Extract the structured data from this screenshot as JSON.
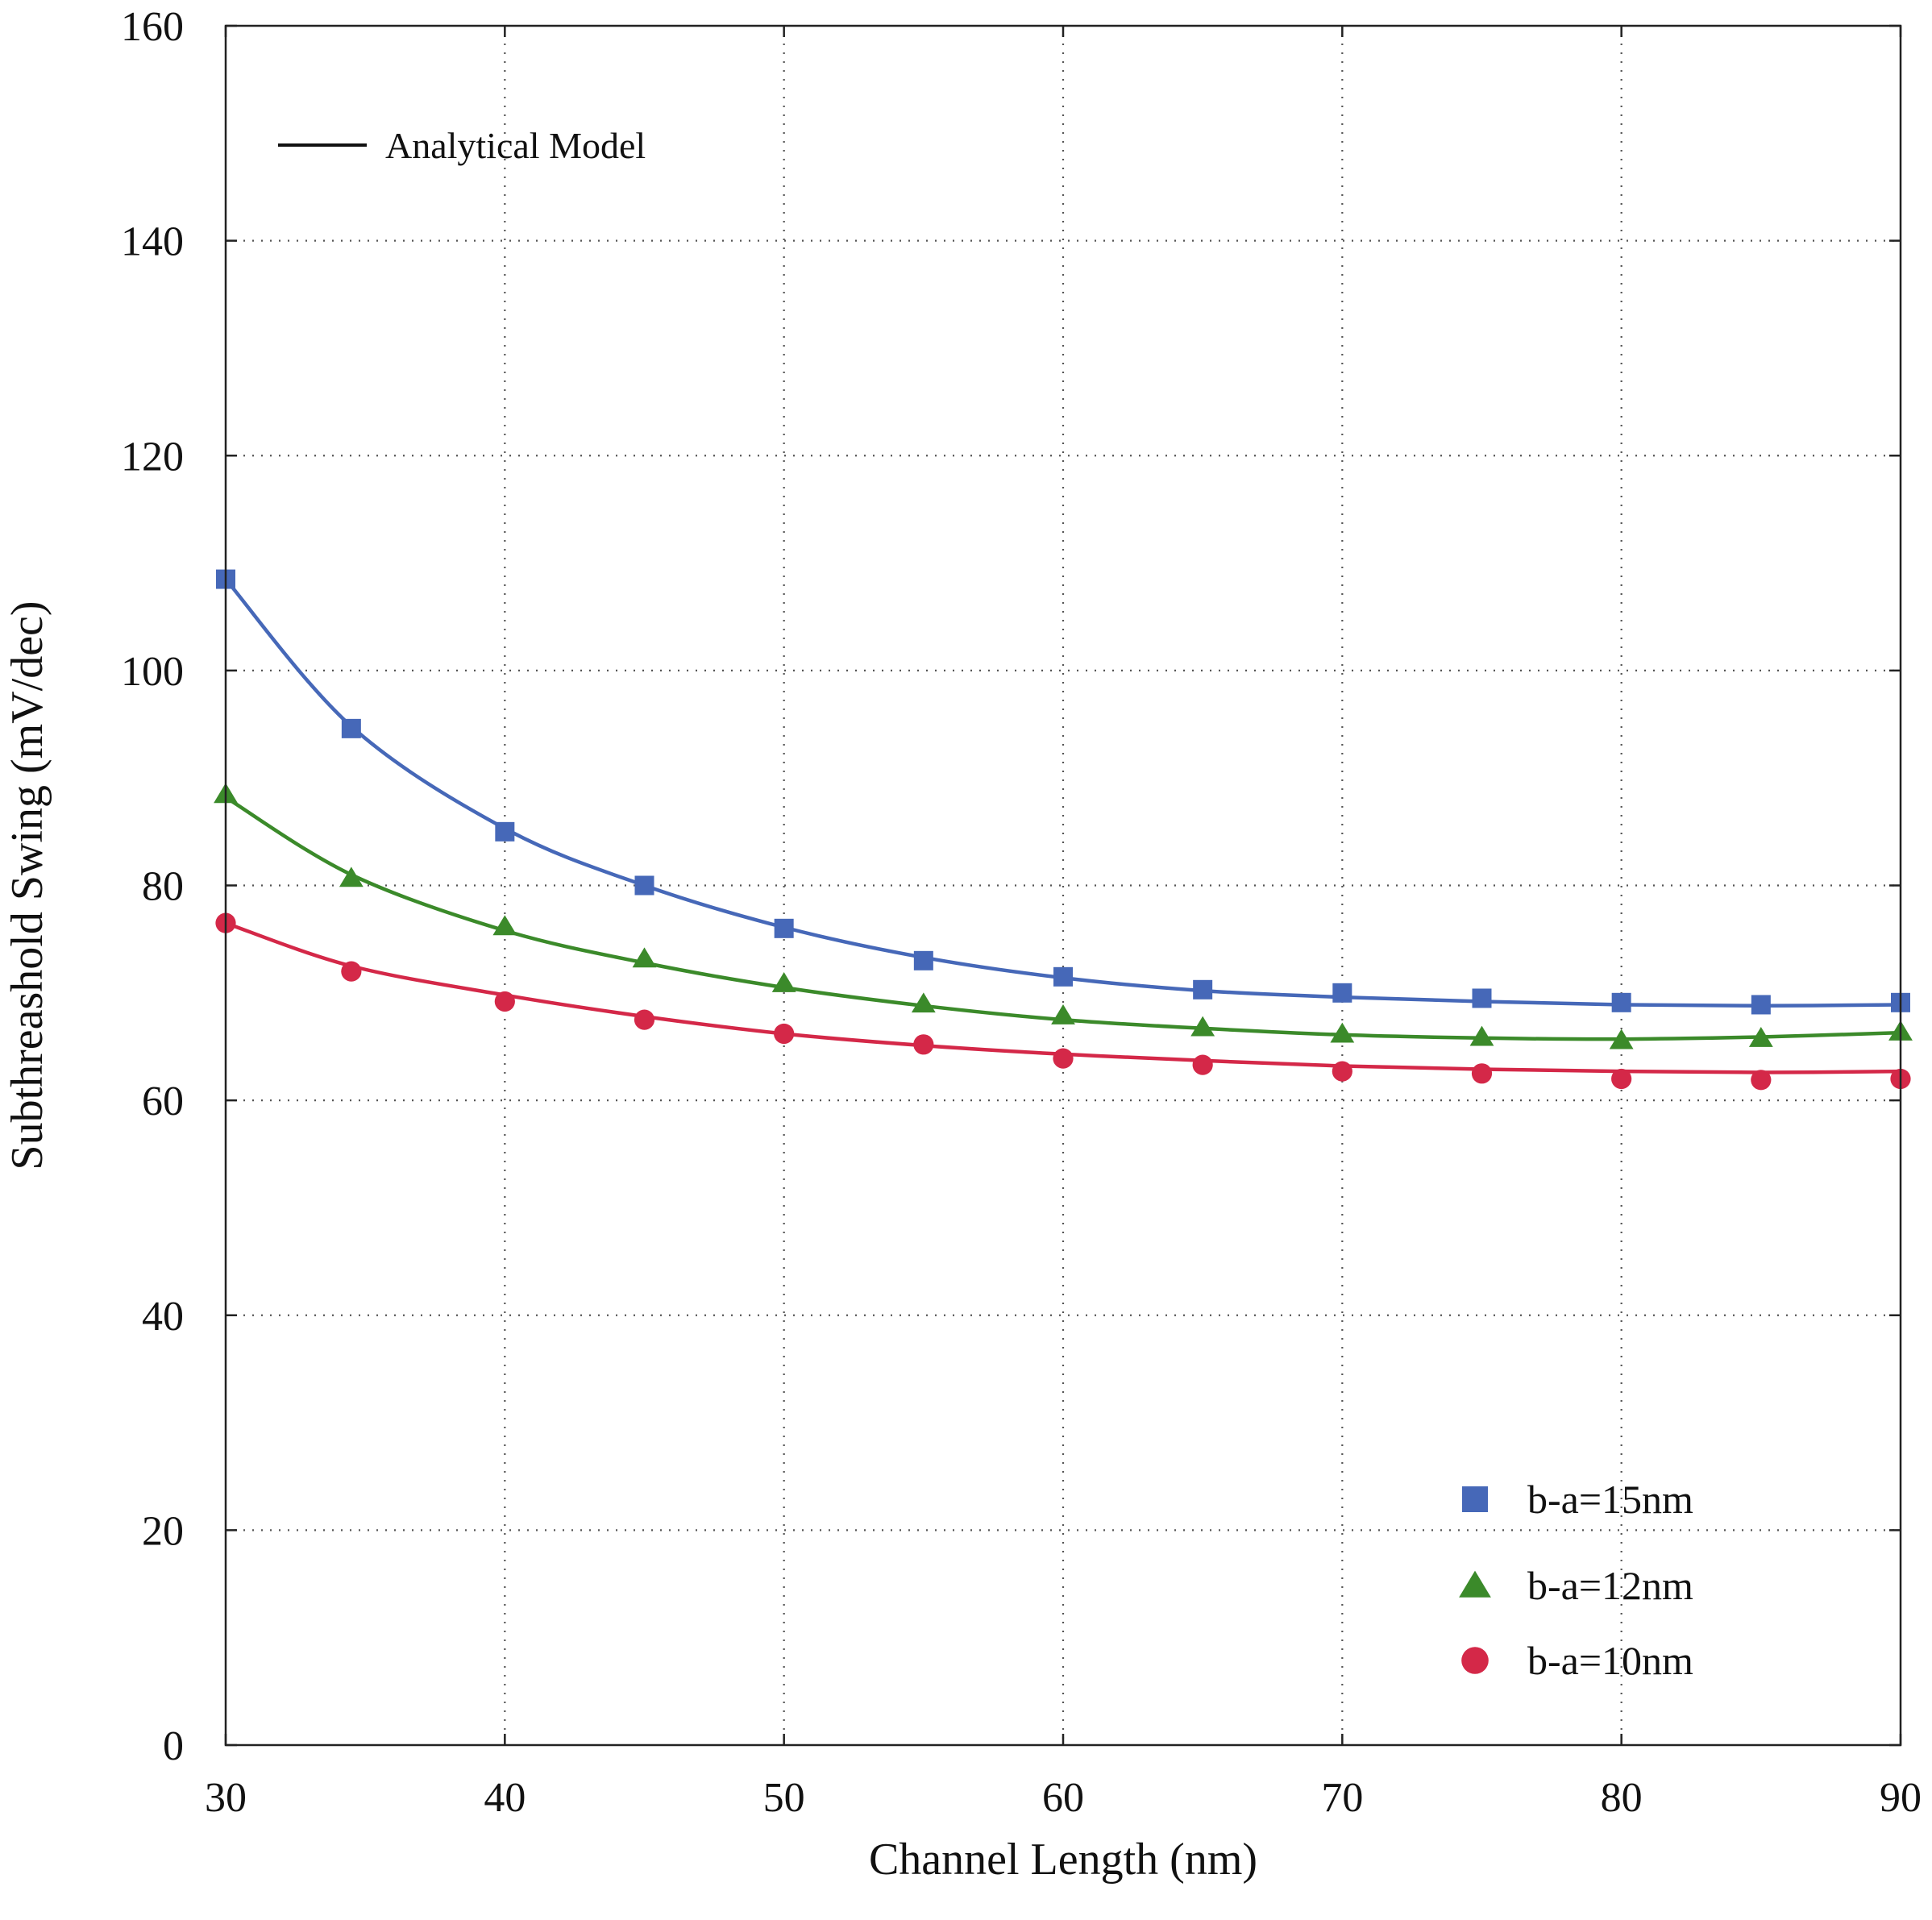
{
  "chart_data": {
    "type": "line",
    "xlabel": "Channel Length (nm)",
    "ylabel": "Subthreashold Swing (mV/dec)",
    "xlim": [
      30,
      90
    ],
    "ylim": [
      0,
      160
    ],
    "x_ticks": [
      "30",
      "40",
      "50",
      "60",
      "70",
      "80",
      "90"
    ],
    "y_ticks": [
      "0",
      "20",
      "40",
      "60",
      "80",
      "100",
      "120",
      "140",
      "160"
    ],
    "grid": true,
    "model_legend": {
      "label": "Analytical Model",
      "position": "top-left"
    },
    "series_legend_position": "bottom-right",
    "series": [
      {
        "name": "b-a=15nm",
        "marker": "square",
        "color": "#4668b8",
        "x": [
          30,
          34.5,
          40,
          45,
          50,
          55,
          60,
          65,
          70,
          75,
          80,
          85,
          90
        ],
        "values": [
          108.5,
          94.6,
          85.0,
          80.0,
          76.0,
          73.0,
          71.5,
          70.3,
          70.0,
          69.5,
          69.1,
          68.9,
          69.1
        ],
        "model": [
          108.5,
          94.8,
          85.3,
          80.0,
          76.1,
          73.3,
          71.4,
          70.2,
          69.6,
          69.2,
          68.9,
          68.8,
          68.9
        ]
      },
      {
        "name": "b-a=12nm",
        "marker": "triangle",
        "color": "#3b8a2a",
        "x": [
          30,
          34.5,
          40,
          45,
          50,
          55,
          60,
          65,
          70,
          75,
          80,
          85,
          90
        ],
        "values": [
          88.5,
          80.7,
          76.2,
          73.2,
          70.9,
          69.0,
          67.9,
          66.8,
          66.2,
          65.9,
          65.6,
          65.8,
          66.4
        ],
        "model": [
          88.2,
          81.0,
          75.8,
          72.8,
          70.5,
          68.8,
          67.5,
          66.7,
          66.1,
          65.8,
          65.7,
          65.9,
          66.3
        ]
      },
      {
        "name": "b-a=10nm",
        "marker": "circle",
        "color": "#d42848",
        "x": [
          30,
          34.5,
          40,
          45,
          50,
          55,
          60,
          65,
          70,
          75,
          80,
          85,
          90
        ],
        "values": [
          76.5,
          72.0,
          69.2,
          67.5,
          66.2,
          65.2,
          63.9,
          63.3,
          62.7,
          62.5,
          62.0,
          61.9,
          62.0
        ],
        "model": [
          76.5,
          72.5,
          69.8,
          67.8,
          66.2,
          65.1,
          64.3,
          63.7,
          63.2,
          62.9,
          62.7,
          62.6,
          62.7
        ]
      }
    ]
  }
}
